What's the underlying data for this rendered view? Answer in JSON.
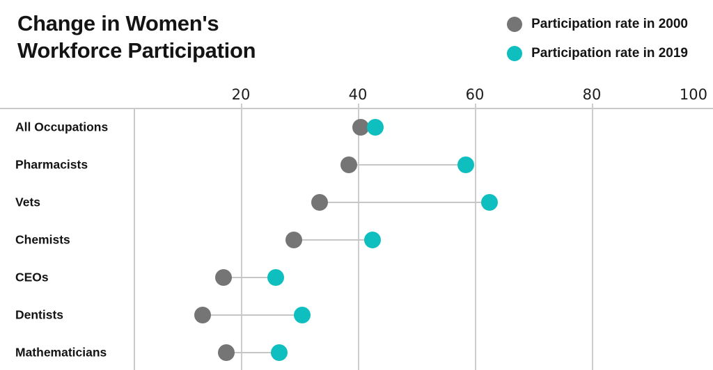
{
  "header": {
    "title_lines": [
      "Change in Women's",
      "Workforce Participation"
    ]
  },
  "chart_data": {
    "type": "dumbbell",
    "title": "Change in Women's Workforce Participation",
    "categories": [
      "All Occupations",
      "Pharmacists",
      "Vets",
      "Chemists",
      "CEOs",
      "Dentists",
      "Mathematicians"
    ],
    "series": [
      {
        "name": "Participation rate in 2000",
        "color": "#757575",
        "values": [
          40.5,
          38.5,
          33.5,
          29,
          17,
          13.5,
          17.5
        ]
      },
      {
        "name": "Participation rate in 2019",
        "color": "#0fbfbf",
        "values": [
          43,
          58.5,
          62.5,
          42.5,
          26,
          30.5,
          26.5
        ]
      }
    ],
    "xlabel": "",
    "ylabel": "",
    "xlim": [
      0,
      100
    ],
    "xticks": [
      20,
      40,
      60,
      80,
      100
    ],
    "grid": true,
    "legend_position": "top-right",
    "colors": {
      "series_2000": "#757575",
      "series_2019": "#0fbfbf",
      "gridline": "#cdcdcd",
      "connector": "#c6c6c6",
      "text": "#141414"
    }
  }
}
